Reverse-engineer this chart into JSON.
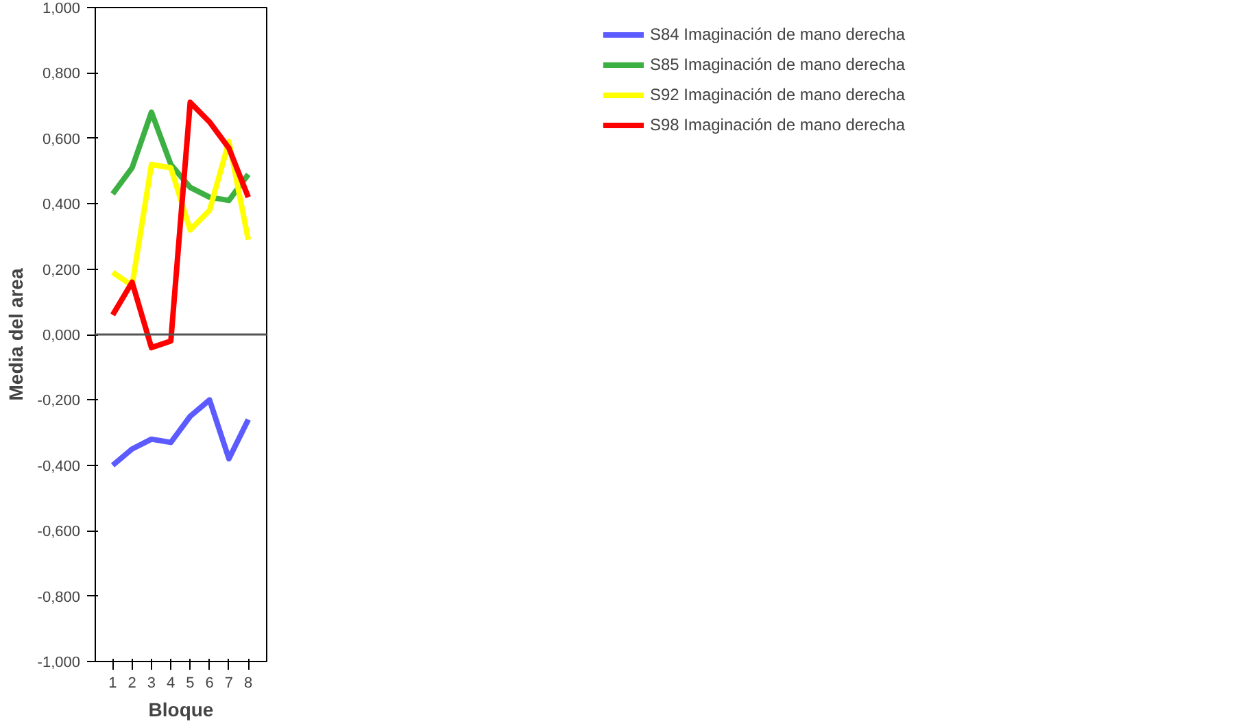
{
  "chart_data": {
    "type": "line",
    "xlabel": "Bloque",
    "ylabel": "Media del area",
    "x": [
      1,
      2,
      3,
      4,
      5,
      6,
      7,
      8
    ],
    "xlim": [
      0.1,
      8.95
    ],
    "xticks": [
      1,
      2,
      3,
      4,
      5,
      6,
      7,
      8
    ],
    "ylim": [
      -1,
      1
    ],
    "yticks": [
      {
        "value": -1,
        "label": "-1,000"
      },
      {
        "value": -0.8,
        "label": "-0,800"
      },
      {
        "value": -0.6,
        "label": "-0,600"
      },
      {
        "value": -0.4,
        "label": "-0,400"
      },
      {
        "value": -0.2,
        "label": "-0,200"
      },
      {
        "value": 0,
        "label": "0,000"
      },
      {
        "value": 0.2,
        "label": "0,200"
      },
      {
        "value": 0.4,
        "label": "0,400"
      },
      {
        "value": 0.6,
        "label": "0,600"
      },
      {
        "value": 0.8,
        "label": "0,800"
      },
      {
        "value": 1,
        "label": "1,000"
      }
    ],
    "series": [
      {
        "name": "S84 Imaginación de mano derecha",
        "color": "#5b5bff",
        "values": [
          -0.4,
          -0.35,
          -0.32,
          -0.33,
          -0.25,
          -0.2,
          -0.38,
          -0.26
        ]
      },
      {
        "name": "S85 Imaginación de mano derecha",
        "color": "#3cb043",
        "values": [
          0.43,
          0.51,
          0.68,
          0.52,
          0.45,
          0.42,
          0.41,
          0.49
        ]
      },
      {
        "name": "S92 Imaginación de mano derecha",
        "color": "#ffff00",
        "values": [
          0.19,
          0.15,
          0.52,
          0.51,
          0.32,
          0.38,
          0.59,
          0.29
        ]
      },
      {
        "name": "S98 Imaginación de mano derecha",
        "color": "#ff0000",
        "values": [
          0.06,
          0.16,
          -0.04,
          -0.02,
          0.71,
          0.65,
          0.57,
          0.42
        ]
      }
    ],
    "ref_lines": [
      {
        "axis": "y",
        "value": 0,
        "color": "#555555"
      }
    ],
    "grid": false,
    "legend": "right",
    "marker": "none",
    "line_style": "solid"
  }
}
